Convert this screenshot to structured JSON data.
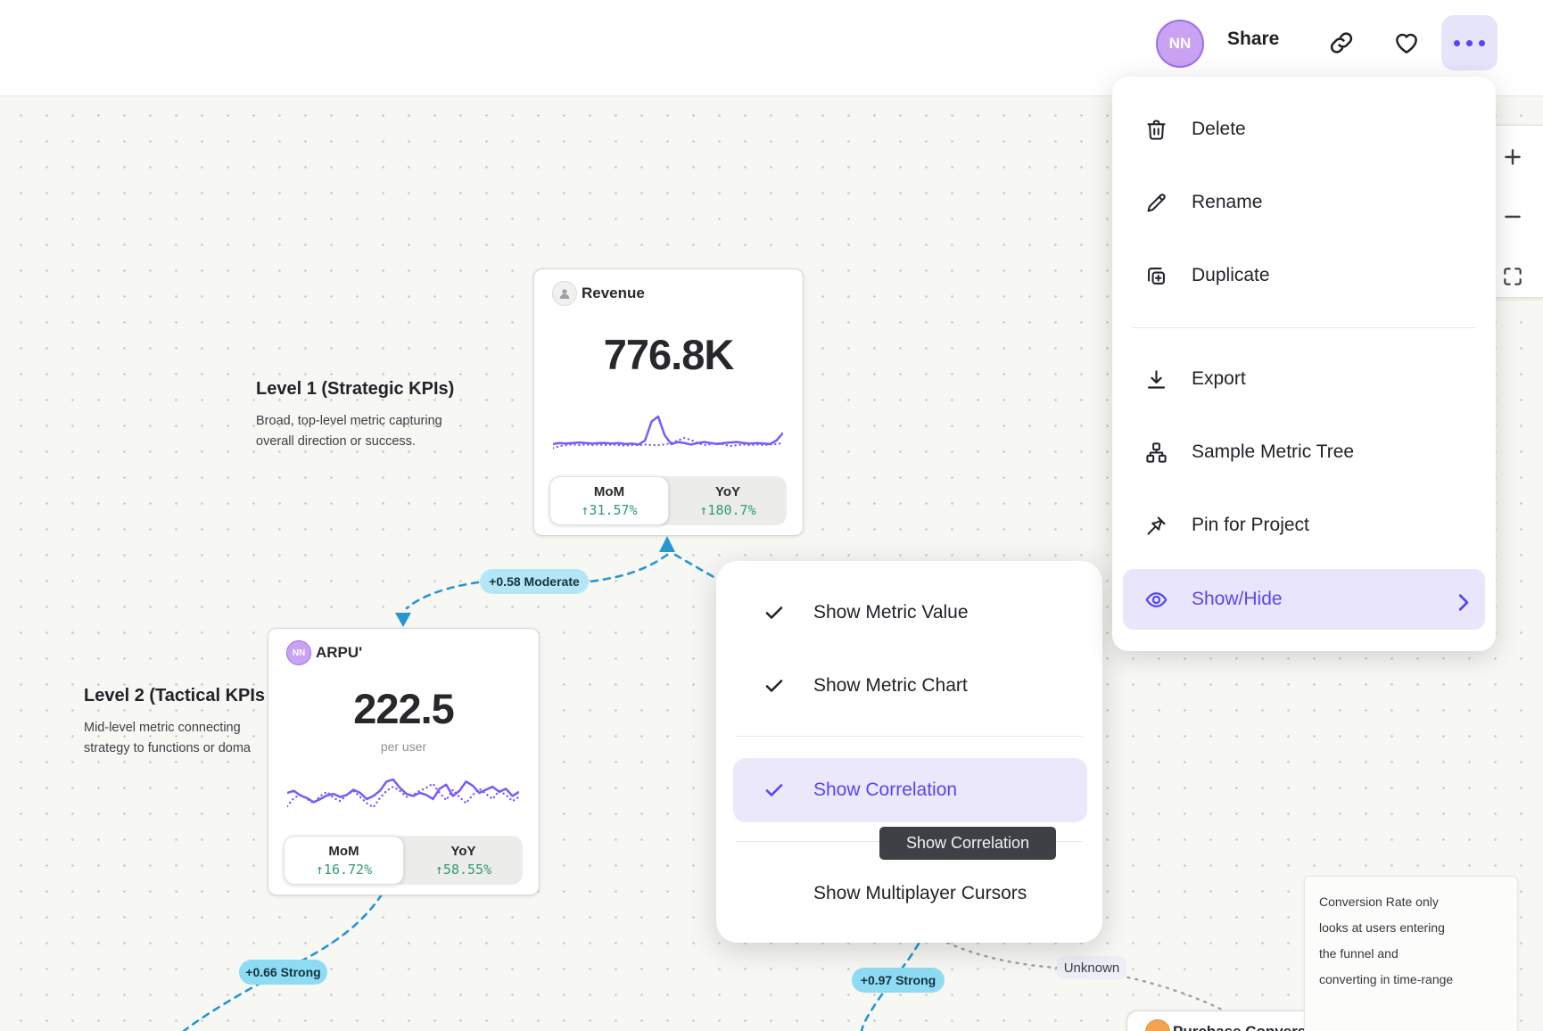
{
  "header": {
    "avatar": "NN",
    "share": "Share"
  },
  "menu": {
    "items": [
      {
        "label": "Delete"
      },
      {
        "label": "Rename"
      },
      {
        "label": "Duplicate"
      },
      {
        "label": "Export"
      },
      {
        "label": "Sample Metric Tree"
      },
      {
        "label": "Pin for Project"
      },
      {
        "label": "Show/Hide"
      }
    ]
  },
  "submenu": {
    "items": [
      {
        "label": "Show Metric Value",
        "checked": true
      },
      {
        "label": "Show Metric Chart",
        "checked": true
      },
      {
        "label": "Show Correlation",
        "checked": true,
        "active": true
      },
      {
        "label": "Show Multiplayer Cursors",
        "checked": false
      }
    ]
  },
  "tooltip": {
    "text": "Show Correlation"
  },
  "canvas": {
    "level1": {
      "title": "Level 1 (Strategic KPIs)",
      "line1": "Broad, top-level metric capturing",
      "line2": "overall direction or success."
    },
    "level2": {
      "title": "Level 2 (Tactical KPIs",
      "line1": "Mid-level metric connecting",
      "line2": "strategy to functions or doma"
    },
    "badges": {
      "moderate": "+0.58 Moderate",
      "strong1": "+0.66 Strong",
      "strong2": "+0.97 Strong",
      "unknown": "Unknown"
    },
    "note": {
      "line1": "Conversion Rate only",
      "line2": "looks at users entering",
      "line3": "the funnel and",
      "line4": "converting in time-range"
    },
    "cards": {
      "revenue": {
        "title": "Revenue",
        "value": "776.8K",
        "mom_label": "MoM",
        "mom_value": "↑31.57%",
        "yoy_label": "YoY",
        "yoy_value": "↑180.7%",
        "spark": {
          "solid": [
            62,
            60,
            61,
            60,
            59,
            60,
            61,
            60,
            60,
            61,
            60,
            62,
            61,
            63,
            55,
            18,
            8,
            45,
            62,
            58,
            60,
            63,
            60,
            58,
            60,
            62,
            60,
            59,
            58,
            60,
            61,
            60,
            61,
            62,
            55,
            40
          ],
          "dotted": [
            70,
            66,
            64,
            63,
            64,
            63,
            64,
            63,
            64,
            63,
            64,
            65,
            64,
            64,
            63,
            64,
            64,
            63,
            60,
            55,
            50,
            54,
            60,
            64,
            62,
            60,
            63,
            66,
            64,
            63,
            64,
            63,
            64,
            63,
            62,
            60
          ]
        }
      },
      "arpu": {
        "title": "ARPU'",
        "value": "222.5",
        "unit": "per user",
        "avatar": "NN",
        "mom_label": "MoM",
        "mom_value": "↑16.72%",
        "yoy_label": "YoY",
        "yoy_value": "↑58.55%",
        "spark": {
          "solid": [
            50,
            46,
            55,
            60,
            68,
            62,
            55,
            52,
            58,
            54,
            44,
            50,
            62,
            56,
            46,
            28,
            24,
            40,
            52,
            56,
            50,
            54,
            62,
            42,
            34,
            56,
            46,
            28,
            36,
            50,
            44,
            38,
            48,
            42,
            56,
            48
          ],
          "dotted": [
            76,
            60,
            54,
            62,
            70,
            56,
            48,
            60,
            66,
            54,
            46,
            58,
            70,
            78,
            60,
            46,
            38,
            46,
            58,
            54,
            46,
            40,
            32,
            50,
            64,
            44,
            58,
            70,
            54,
            42,
            52,
            62,
            46,
            54,
            66,
            58
          ]
        }
      },
      "purchase": {
        "title": "Purchase Conversion R"
      }
    }
  },
  "colors": {
    "accent": "#5746f0",
    "sparkline": "#7a5af8",
    "positive": "#2f9c6e",
    "correlation_blue": "#2596d1",
    "badge_moderate": "#b3e7f8",
    "badge_strong": "#8edcf4"
  }
}
